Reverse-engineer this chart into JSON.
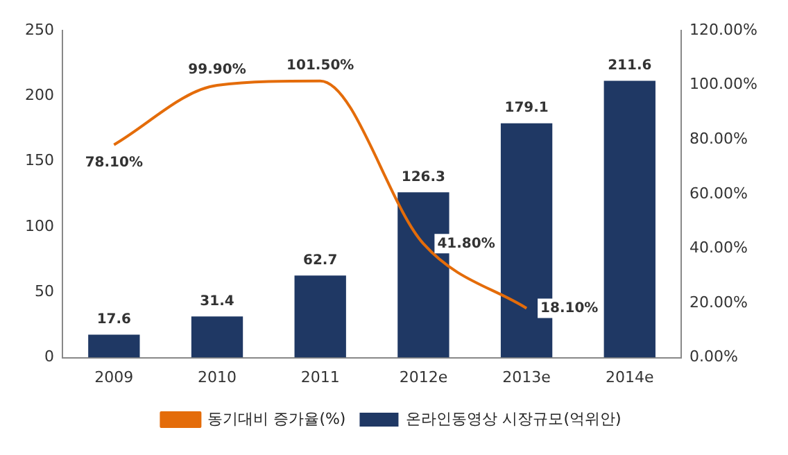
{
  "chart_data": {
    "type": "bar",
    "categories": [
      "2009",
      "2010",
      "2011",
      "2012e",
      "2013e",
      "2014e"
    ],
    "series": [
      {
        "name": "온라인동영상 시장규모(억위안)",
        "color": "#1f3864",
        "values": [
          17.6,
          31.4,
          62.7,
          126.3,
          179.1,
          211.6
        ],
        "value_labels": [
          "17.6",
          "31.4",
          "62.7",
          "126.3",
          "179.1",
          "211.6"
        ]
      },
      {
        "name": "동기대비 증가율(%)",
        "type": "line",
        "axis": "y2",
        "color": "#e46c0a",
        "values": [
          78.1,
          99.9,
          101.5,
          41.8,
          18.1,
          null
        ],
        "value_labels": [
          "78.10%",
          "99.90%",
          "101.50%",
          "41.80%",
          "18.10%",
          null
        ]
      }
    ],
    "ylim": [
      0,
      250
    ],
    "yticks": [
      0,
      50,
      100,
      150,
      200,
      250
    ],
    "y2lim": [
      0,
      120
    ],
    "y2ticks": [
      {
        "value": 0,
        "label": "0.00%"
      },
      {
        "value": 20,
        "label": "20.00%"
      },
      {
        "value": 40,
        "label": "40.00%"
      },
      {
        "value": 60,
        "label": "60.00%"
      },
      {
        "value": 80,
        "label": "80.00%"
      },
      {
        "value": 100,
        "label": "100.00%"
      },
      {
        "value": 120,
        "label": "120.00%"
      }
    ],
    "grid": false,
    "legend": "bottom",
    "marker": "none",
    "line_style": "solid"
  }
}
